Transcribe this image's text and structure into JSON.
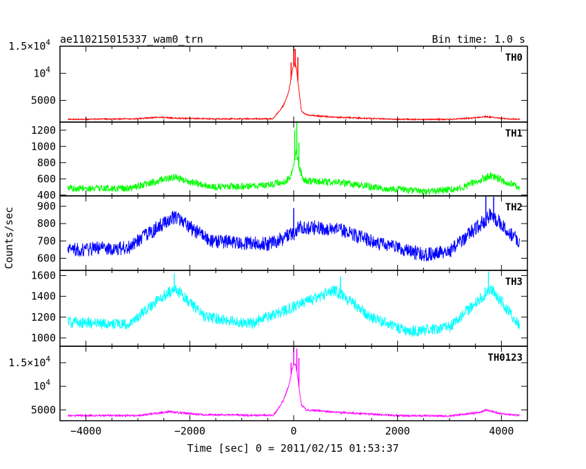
{
  "chart_data": {
    "type": "line",
    "title": "ae110215015337_wam0_trn",
    "bin_time": "Bin time: 1.0 s",
    "xlabel": "Time [sec] 0 = 2011/02/15 01:53:37",
    "ylabel": "Counts/sec",
    "xlim": [
      -4500,
      4500
    ],
    "xticks": [
      -4000,
      -2000,
      0,
      2000,
      4000
    ],
    "xtick_labels": [
      "−4000",
      "−2000",
      "0",
      "2000",
      "4000"
    ],
    "grid": false,
    "panels": [
      {
        "name": "TH0",
        "color": "#ff0000",
        "ylim": [
          1000,
          15000
        ],
        "yticks": [
          5000,
          10000,
          15000
        ],
        "ytick_labels": [
          {
            "v": 5000,
            "t": "5000"
          },
          {
            "v": 10000,
            "t": "10",
            "sup": "4"
          },
          {
            "v": 15000,
            "t": "1.5×10",
            "sup": "4"
          }
        ],
        "baseline": [
          [
            -4350,
            1500
          ],
          [
            -3000,
            1600
          ],
          [
            -2600,
            1900
          ],
          [
            -2200,
            1700
          ],
          [
            -1500,
            1600
          ],
          [
            -400,
            1600
          ],
          [
            -300,
            2800
          ],
          [
            -200,
            4000
          ],
          [
            -100,
            6500
          ],
          [
            -50,
            9000
          ],
          [
            0,
            12000
          ],
          [
            50,
            11000
          ],
          [
            100,
            7000
          ],
          [
            150,
            3000
          ],
          [
            250,
            2300
          ],
          [
            800,
            1900
          ],
          [
            2000,
            1500
          ],
          [
            3000,
            1500
          ],
          [
            3500,
            1800
          ],
          [
            3700,
            2000
          ],
          [
            4000,
            1700
          ],
          [
            4350,
            1500
          ]
        ],
        "noise": 120,
        "spikes": [
          [
            -50,
            12000
          ],
          [
            0,
            15000
          ],
          [
            30,
            14500
          ],
          [
            80,
            13000
          ]
        ]
      },
      {
        "name": "TH1",
        "color": "#00ff00",
        "ylim": [
          390,
          1300
        ],
        "yticks": [
          400,
          600,
          800,
          1000,
          1200
        ],
        "ytick_labels": [
          {
            "v": 400,
            "t": "400"
          },
          {
            "v": 600,
            "t": "600"
          },
          {
            "v": 800,
            "t": "800"
          },
          {
            "v": 1000,
            "t": "1000"
          },
          {
            "v": 1200,
            "t": "1200"
          }
        ],
        "baseline": [
          [
            -4350,
            480
          ],
          [
            -3200,
            480
          ],
          [
            -2300,
            620
          ],
          [
            -1600,
            500
          ],
          [
            -500,
            520
          ],
          [
            -150,
            570
          ],
          [
            -50,
            650
          ],
          [
            0,
            800
          ],
          [
            50,
            950
          ],
          [
            100,
            750
          ],
          [
            200,
            580
          ],
          [
            800,
            560
          ],
          [
            1500,
            500
          ],
          [
            2500,
            440
          ],
          [
            3200,
            480
          ],
          [
            3800,
            640
          ],
          [
            4350,
            490
          ]
        ],
        "noise": 45,
        "spikes": [
          [
            20,
            1200
          ],
          [
            60,
            1300
          ],
          [
            100,
            1050
          ]
        ]
      },
      {
        "name": "TH2",
        "color": "#0000ff",
        "ylim": [
          530,
          960
        ],
        "yticks": [
          600,
          700,
          800,
          900
        ],
        "ytick_labels": [
          {
            "v": 600,
            "t": "600"
          },
          {
            "v": 700,
            "t": "700"
          },
          {
            "v": 800,
            "t": "800"
          },
          {
            "v": 900,
            "t": "900"
          }
        ],
        "baseline": [
          [
            -4350,
            650
          ],
          [
            -3200,
            660
          ],
          [
            -2300,
            840
          ],
          [
            -1600,
            700
          ],
          [
            -500,
            680
          ],
          [
            0,
            740
          ],
          [
            100,
            780
          ],
          [
            800,
            770
          ],
          [
            1500,
            700
          ],
          [
            2500,
            620
          ],
          [
            3000,
            640
          ],
          [
            3800,
            850
          ],
          [
            4350,
            690
          ]
        ],
        "noise": 42,
        "spikes": [
          [
            0,
            890
          ],
          [
            3700,
            960
          ],
          [
            3850,
            955
          ]
        ]
      },
      {
        "name": "TH3",
        "color": "#00ffff",
        "ylim": [
          920,
          1650
        ],
        "yticks": [
          1000,
          1200,
          1400,
          1600
        ],
        "ytick_labels": [
          {
            "v": 1000,
            "t": "1000"
          },
          {
            "v": 1200,
            "t": "1200"
          },
          {
            "v": 1400,
            "t": "1400"
          },
          {
            "v": 1600,
            "t": "1600"
          }
        ],
        "baseline": [
          [
            -4350,
            1150
          ],
          [
            -3200,
            1130
          ],
          [
            -2300,
            1480
          ],
          [
            -1700,
            1200
          ],
          [
            -800,
            1140
          ],
          [
            0,
            1300
          ],
          [
            800,
            1460
          ],
          [
            1500,
            1200
          ],
          [
            2200,
            1060
          ],
          [
            3000,
            1100
          ],
          [
            3800,
            1480
          ],
          [
            4350,
            1120
          ]
        ],
        "noise": 55,
        "spikes": [
          [
            -2300,
            1620
          ],
          [
            3750,
            1640
          ],
          [
            900,
            1590
          ]
        ]
      },
      {
        "name": "TH0123",
        "color": "#ff00ff",
        "ylim": [
          2700,
          18500
        ],
        "yticks": [
          5000,
          10000,
          15000
        ],
        "ytick_labels": [
          {
            "v": 5000,
            "t": "5000"
          },
          {
            "v": 10000,
            "t": "10",
            "sup": "4"
          },
          {
            "v": 15000,
            "t": "1.5×10",
            "sup": "4"
          }
        ],
        "baseline": [
          [
            -4350,
            3800
          ],
          [
            -3000,
            3800
          ],
          [
            -2400,
            4600
          ],
          [
            -1800,
            4000
          ],
          [
            -400,
            3800
          ],
          [
            -300,
            5200
          ],
          [
            -200,
            7000
          ],
          [
            -100,
            10000
          ],
          [
            -50,
            12500
          ],
          [
            0,
            15000
          ],
          [
            50,
            14000
          ],
          [
            100,
            10000
          ],
          [
            150,
            6000
          ],
          [
            250,
            5000
          ],
          [
            800,
            4500
          ],
          [
            2000,
            3800
          ],
          [
            3000,
            3700
          ],
          [
            3600,
            4500
          ],
          [
            3700,
            5000
          ],
          [
            4000,
            4200
          ],
          [
            4350,
            3800
          ]
        ],
        "noise": 200,
        "spikes": [
          [
            -50,
            15000
          ],
          [
            0,
            18500
          ],
          [
            60,
            18000
          ],
          [
            100,
            16000
          ]
        ]
      }
    ]
  }
}
